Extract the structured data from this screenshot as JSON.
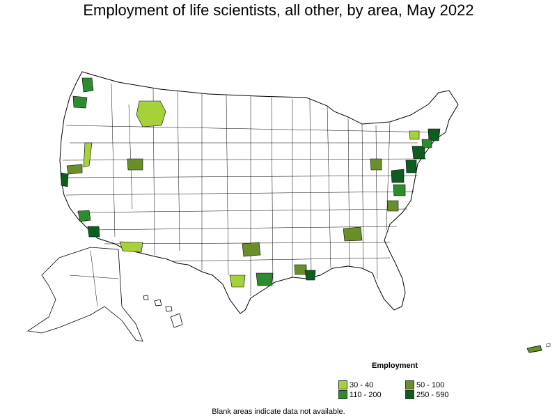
{
  "title": "Employment of life scientists, all other, by area, May 2022",
  "legend": {
    "title": "Employment",
    "items": [
      {
        "label": "30 - 40",
        "color": "#a6d13a"
      },
      {
        "label": "50 - 100",
        "color": "#6a8f29"
      },
      {
        "label": "110 - 200",
        "color": "#2e8b2e"
      },
      {
        "label": "250 - 590",
        "color": "#0b5e1e"
      }
    ]
  },
  "footnote": "Blank areas indicate data not available.",
  "colors": {
    "no_data": "#ffffff",
    "border": "#000000"
  },
  "areas_shaded": [
    {
      "region": "Seattle WA",
      "bin": "110 - 200"
    },
    {
      "region": "Portland OR",
      "bin": "110 - 200"
    },
    {
      "region": "Western Montana",
      "bin": "30 - 40"
    },
    {
      "region": "Reno NV",
      "bin": "30 - 40"
    },
    {
      "region": "Sacramento CA",
      "bin": "50 - 100"
    },
    {
      "region": "San Francisco Bay Area CA",
      "bin": "250 - 590"
    },
    {
      "region": "Los Angeles CA",
      "bin": "110 - 200"
    },
    {
      "region": "San Diego CA",
      "bin": "250 - 590"
    },
    {
      "region": "Salt Lake City UT",
      "bin": "50 - 100"
    },
    {
      "region": "Southern Arizona",
      "bin": "30 - 40"
    },
    {
      "region": "Dallas-Fort Worth TX",
      "bin": "50 - 100"
    },
    {
      "region": "Austin TX",
      "bin": "30 - 40"
    },
    {
      "region": "Houston TX",
      "bin": "110 - 200"
    },
    {
      "region": "Baton Rouge LA",
      "bin": "50 - 100"
    },
    {
      "region": "New Orleans LA",
      "bin": "250 - 590"
    },
    {
      "region": "Atlanta GA",
      "bin": "50 - 100"
    },
    {
      "region": "Pittsburgh PA",
      "bin": "50 - 100"
    },
    {
      "region": "Raleigh-Durham NC",
      "bin": "50 - 100"
    },
    {
      "region": "Washington DC-Baltimore",
      "bin": "250 - 590"
    },
    {
      "region": "Richmond VA",
      "bin": "110 - 200"
    },
    {
      "region": "Philadelphia PA",
      "bin": "250 - 590"
    },
    {
      "region": "New York NY",
      "bin": "250 - 590"
    },
    {
      "region": "Boston MA",
      "bin": "250 - 590"
    },
    {
      "region": "Albany NY",
      "bin": "30 - 40"
    },
    {
      "region": "Puerto Rico",
      "bin": "50 - 100"
    }
  ]
}
